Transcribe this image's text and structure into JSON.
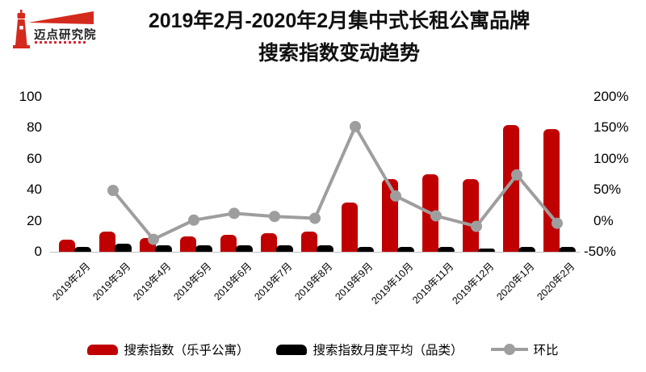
{
  "logo": {
    "text": "迈点研究院"
  },
  "header": {
    "title_line1": "2019年2月-2020年2月集中式长租公寓品牌",
    "title_line2": "搜索指数变动趋势"
  },
  "chart_data": {
    "type": "combo",
    "title": "2019年2月-2020年2月集中式长租公寓品牌搜索指数变动趋势",
    "categories": [
      "2019年2月",
      "2019年3月",
      "2019年4月",
      "2019年5月",
      "2019年6月",
      "2019年7月",
      "2019年8月",
      "2019年9月",
      "2019年10月",
      "2019年11月",
      "2019年12月",
      "2020年1月",
      "2020年2月"
    ],
    "series": [
      {
        "name": "搜索指数（乐乎公寓）",
        "type": "bar",
        "axis": "left",
        "color": "#c00000",
        "values": [
          8,
          13,
          9,
          10,
          11,
          12,
          13,
          32,
          47,
          50,
          47,
          82,
          79
        ]
      },
      {
        "name": "搜索指数月度平均（品类）",
        "type": "bar",
        "axis": "left",
        "color": "#000000",
        "values": [
          3,
          5,
          4,
          4,
          4,
          4,
          4,
          3,
          3,
          3,
          2,
          3,
          3
        ]
      },
      {
        "name": "环比",
        "type": "line",
        "axis": "right",
        "unit": "%",
        "color": "#9e9e9e",
        "values": [
          null,
          49,
          -30,
          1,
          12,
          7,
          4,
          152,
          40,
          8,
          -9,
          74,
          -4
        ]
      }
    ],
    "left_axis": {
      "min": 0,
      "max": 100,
      "ticks": [
        "0",
        "20",
        "40",
        "60",
        "80",
        "100"
      ],
      "tick_values": [
        0,
        20,
        40,
        60,
        80,
        100
      ]
    },
    "right_axis": {
      "min": -50,
      "max": 200,
      "ticks": [
        "-50%",
        "0%",
        "50%",
        "100%",
        "150%",
        "200%"
      ],
      "tick_values": [
        -50,
        0,
        50,
        100,
        150,
        200
      ]
    },
    "grid": false,
    "legend_position": "bottom"
  }
}
